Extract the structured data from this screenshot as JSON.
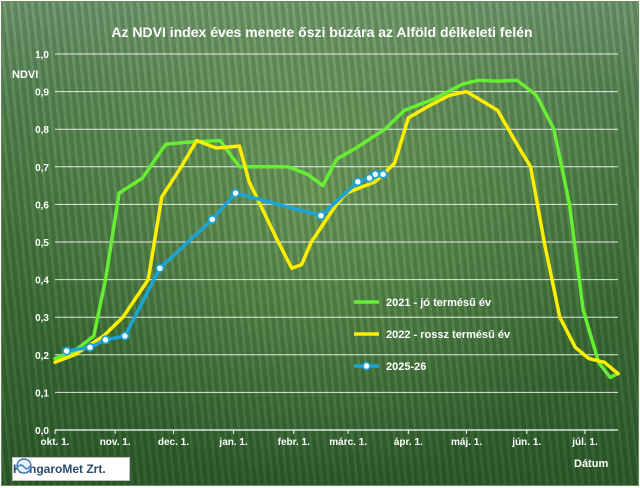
{
  "chart_data": {
    "type": "line",
    "title": "Az NDVI index éves menete őszi búzára az Alföld délkeleti felén",
    "ylabel": "NDVI",
    "xlabel": "Dátum",
    "ylim": [
      0,
      1
    ],
    "yticks": [
      "0,0",
      "0,1",
      "0,2",
      "0,3",
      "0,4",
      "0,5",
      "0,6",
      "0,7",
      "0,8",
      "0,9",
      "1,0"
    ],
    "xlim": [
      0,
      290
    ],
    "xticks": [
      {
        "label": "okt. 1.",
        "x": 0
      },
      {
        "label": "nov. 1.",
        "x": 31
      },
      {
        "label": "dec. 1.",
        "x": 61
      },
      {
        "label": "jan. 1.",
        "x": 92
      },
      {
        "label": "febr. 1.",
        "x": 123
      },
      {
        "label": "márc. 1.",
        "x": 151
      },
      {
        "label": "ápr. 1.",
        "x": 182
      },
      {
        "label": "máj. 1.",
        "x": 212
      },
      {
        "label": "jún. 1.",
        "x": 243
      },
      {
        "label": "júl. 1.",
        "x": 273
      }
    ],
    "grid": true,
    "legend_position": "right-center",
    "series": [
      {
        "name": "2021 - jó termésű év",
        "color": "#66ee33",
        "markers": false,
        "points": [
          [
            0,
            0.19
          ],
          [
            10,
            0.21
          ],
          [
            20,
            0.25
          ],
          [
            26,
            0.4
          ],
          [
            33,
            0.63
          ],
          [
            45,
            0.67
          ],
          [
            57,
            0.76
          ],
          [
            67,
            0.765
          ],
          [
            85,
            0.77
          ],
          [
            95,
            0.7
          ],
          [
            120,
            0.7
          ],
          [
            130,
            0.68
          ],
          [
            138,
            0.65
          ],
          [
            145,
            0.72
          ],
          [
            155,
            0.75
          ],
          [
            170,
            0.8
          ],
          [
            180,
            0.85
          ],
          [
            195,
            0.88
          ],
          [
            210,
            0.92
          ],
          [
            218,
            0.93
          ],
          [
            228,
            0.928
          ],
          [
            238,
            0.93
          ],
          [
            248,
            0.89
          ],
          [
            257,
            0.8
          ],
          [
            265,
            0.6
          ],
          [
            272,
            0.32
          ],
          [
            280,
            0.18
          ],
          [
            286,
            0.14
          ],
          [
            290,
            0.15
          ]
        ]
      },
      {
        "name": "2022 - rossz termésű év",
        "color": "#ffee00",
        "markers": false,
        "points": [
          [
            0,
            0.18
          ],
          [
            10,
            0.2
          ],
          [
            25,
            0.25
          ],
          [
            35,
            0.3
          ],
          [
            48,
            0.4
          ],
          [
            55,
            0.62
          ],
          [
            65,
            0.7
          ],
          [
            73,
            0.77
          ],
          [
            83,
            0.75
          ],
          [
            95,
            0.755
          ],
          [
            100,
            0.66
          ],
          [
            115,
            0.5
          ],
          [
            122,
            0.43
          ],
          [
            127,
            0.44
          ],
          [
            132,
            0.5
          ],
          [
            145,
            0.6
          ],
          [
            150,
            0.63
          ],
          [
            165,
            0.66
          ],
          [
            175,
            0.71
          ],
          [
            182,
            0.83
          ],
          [
            192,
            0.86
          ],
          [
            203,
            0.89
          ],
          [
            212,
            0.9
          ],
          [
            228,
            0.85
          ],
          [
            238,
            0.76
          ],
          [
            245,
            0.7
          ],
          [
            252,
            0.5
          ],
          [
            260,
            0.3
          ],
          [
            268,
            0.22
          ],
          [
            275,
            0.19
          ],
          [
            283,
            0.18
          ],
          [
            290,
            0.15
          ]
        ]
      },
      {
        "name": "2025-26",
        "color": "#1ca4d8",
        "markers": true,
        "points": [
          [
            6,
            0.21
          ],
          [
            18,
            0.22
          ],
          [
            26,
            0.24
          ],
          [
            36,
            0.25
          ],
          [
            54,
            0.43
          ],
          [
            81,
            0.56
          ],
          [
            93,
            0.63
          ],
          [
            137,
            0.57
          ],
          [
            156,
            0.66
          ],
          [
            162,
            0.67
          ],
          [
            165,
            0.68
          ],
          [
            169,
            0.68
          ]
        ]
      }
    ]
  },
  "logo": {
    "text": "HungaroMet Zrt."
  }
}
